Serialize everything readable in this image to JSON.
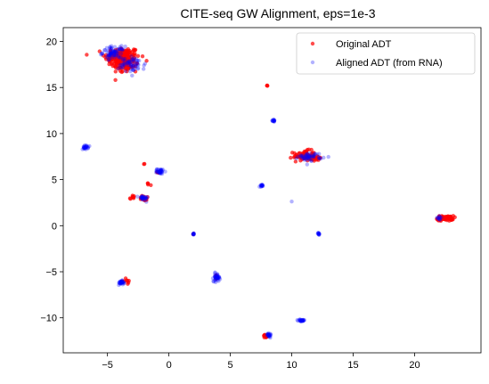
{
  "chart_data": {
    "type": "scatter",
    "title": "CITE-seq GW Alignment, eps=1e-3",
    "xlabel": "",
    "ylabel": "",
    "xlim": [
      -8.6,
      25.4
    ],
    "ylim": [
      -13.8,
      21.5
    ],
    "xticks": [
      -5,
      0,
      5,
      10,
      15,
      20
    ],
    "yticks": [
      -10,
      -5,
      0,
      5,
      10,
      15,
      20
    ],
    "grid": false,
    "legend_position": "top-right",
    "series": [
      {
        "name": "Original ADT",
        "color": "#ff0000",
        "opacity": 0.7,
        "marker_radius": 2.2,
        "clusters": [
          {
            "center": [
              -3.8,
              18.3
            ],
            "spread": [
              1.3,
              1.0
            ],
            "n": 160
          },
          {
            "center": [
              -3.5,
              17.2
            ],
            "spread": [
              1.0,
              0.6
            ],
            "n": 40
          },
          {
            "center": [
              8.0,
              15.2
            ],
            "spread": [
              0.05,
              0.05
            ],
            "n": 3
          },
          {
            "center": [
              11.0,
              7.6
            ],
            "spread": [
              0.8,
              0.5
            ],
            "n": 70
          },
          {
            "center": [
              12.0,
              7.3
            ],
            "spread": [
              0.5,
              0.3
            ],
            "n": 20
          },
          {
            "center": [
              -2.0,
              6.7
            ],
            "spread": [
              0.05,
              0.05
            ],
            "n": 2
          },
          {
            "center": [
              -1.7,
              4.4
            ],
            "spread": [
              0.2,
              0.2
            ],
            "n": 4
          },
          {
            "center": [
              -3.0,
              3.1
            ],
            "spread": [
              0.3,
              0.15
            ],
            "n": 8
          },
          {
            "center": [
              -2.0,
              3.0
            ],
            "spread": [
              0.4,
              0.3
            ],
            "n": 15
          },
          {
            "center": [
              22.5,
              0.8
            ],
            "spread": [
              0.6,
              0.25
            ],
            "n": 60
          },
          {
            "center": [
              -3.5,
              -6.0
            ],
            "spread": [
              0.3,
              0.2
            ],
            "n": 8
          },
          {
            "center": [
              3.8,
              -5.6
            ],
            "spread": [
              0.2,
              0.3
            ],
            "n": 5
          },
          {
            "center": [
              7.9,
              -12.0
            ],
            "spread": [
              0.25,
              0.2
            ],
            "n": 12
          },
          {
            "center": [
              -1.0,
              5.8
            ],
            "spread": [
              0.1,
              0.1
            ],
            "n": 3
          },
          {
            "center": [
              2.0,
              -0.9
            ],
            "spread": [
              0.05,
              0.05
            ],
            "n": 2
          }
        ]
      },
      {
        "name": "Aligned ADT (from RNA)",
        "color": "#0000ff",
        "opacity": 0.3,
        "marker_radius": 2.2,
        "clusters": [
          {
            "center": [
              -4.5,
              18.8
            ],
            "spread": [
              0.8,
              0.6
            ],
            "n": 70
          },
          {
            "center": [
              -3.0,
              17.5
            ],
            "spread": [
              1.0,
              0.8
            ],
            "n": 60
          },
          {
            "center": [
              -6.8,
              8.5
            ],
            "spread": [
              0.2,
              0.2
            ],
            "n": 25
          },
          {
            "center": [
              8.5,
              11.4
            ],
            "spread": [
              0.1,
              0.12
            ],
            "n": 15
          },
          {
            "center": [
              11.5,
              7.5
            ],
            "spread": [
              0.9,
              0.4
            ],
            "n": 50
          },
          {
            "center": [
              -0.7,
              5.9
            ],
            "spread": [
              0.25,
              0.25
            ],
            "n": 35
          },
          {
            "center": [
              7.5,
              4.3
            ],
            "spread": [
              0.12,
              0.15
            ],
            "n": 15
          },
          {
            "center": [
              10.0,
              2.6
            ],
            "spread": [
              0.05,
              0.05
            ],
            "n": 1
          },
          {
            "center": [
              -2.1,
              3.0
            ],
            "spread": [
              0.35,
              0.25
            ],
            "n": 25
          },
          {
            "center": [
              22.0,
              0.8
            ],
            "spread": [
              0.3,
              0.3
            ],
            "n": 10
          },
          {
            "center": [
              2.0,
              -0.9
            ],
            "spread": [
              0.07,
              0.07
            ],
            "n": 10
          },
          {
            "center": [
              12.2,
              -0.9
            ],
            "spread": [
              0.12,
              0.12
            ],
            "n": 12
          },
          {
            "center": [
              3.9,
              -5.6
            ],
            "spread": [
              0.25,
              0.4
            ],
            "n": 40
          },
          {
            "center": [
              -3.9,
              -6.2
            ],
            "spread": [
              0.2,
              0.2
            ],
            "n": 30
          },
          {
            "center": [
              10.8,
              -10.3
            ],
            "spread": [
              0.25,
              0.12
            ],
            "n": 25
          },
          {
            "center": [
              8.1,
              -11.8
            ],
            "spread": [
              0.3,
              0.25
            ],
            "n": 20
          }
        ]
      }
    ]
  }
}
